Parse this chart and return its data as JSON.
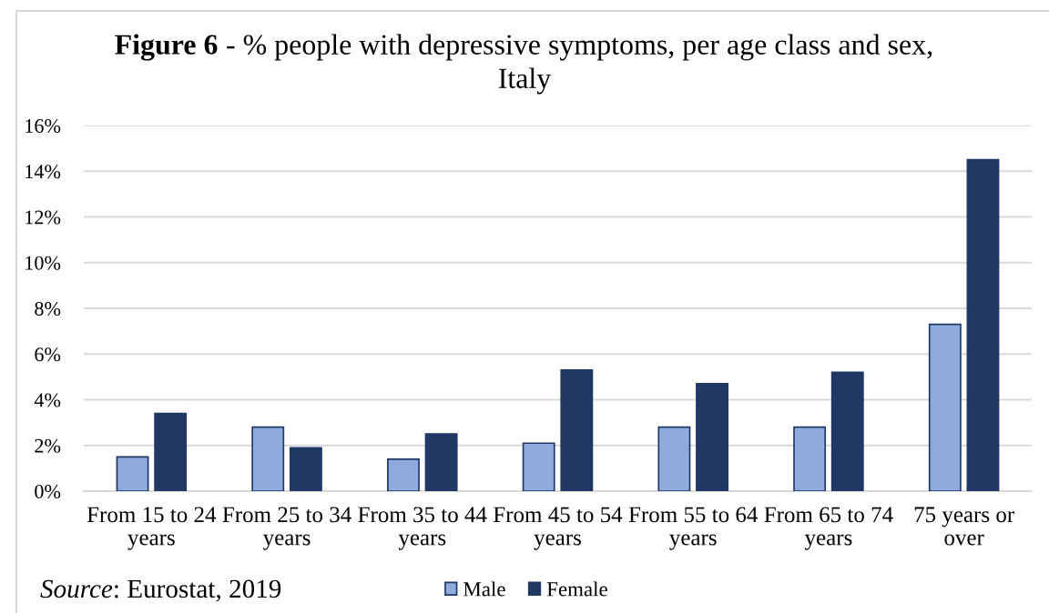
{
  "chart_data": {
    "type": "bar",
    "title": "Figure 6 - % people with depressive symptoms, per age class and sex, Italy",
    "categories": [
      "From 15 to 24 years",
      "From 25 to 34 years",
      "From 35 to 44 years",
      "From 45 to 54 years",
      "From 55 to 64 years",
      "From 65 to 74 years",
      "75 years or over"
    ],
    "series": [
      {
        "name": "Male",
        "color": "#8faadc",
        "values": [
          1.5,
          2.8,
          1.4,
          2.1,
          2.8,
          2.8,
          7.3
        ]
      },
      {
        "name": "Female",
        "color": "#203864",
        "values": [
          3.4,
          1.9,
          2.5,
          5.3,
          4.7,
          5.2,
          14.5
        ]
      }
    ],
    "ylim": [
      0,
      16
    ],
    "yticks": [
      {
        "value": 0,
        "label": "0%"
      },
      {
        "value": 2,
        "label": "2%"
      },
      {
        "value": 4,
        "label": "4%"
      },
      {
        "value": 6,
        "label": "6%"
      },
      {
        "value": 8,
        "label": "8%"
      },
      {
        "value": 10,
        "label": "10%"
      },
      {
        "value": 12,
        "label": "12%"
      },
      {
        "value": 14,
        "label": "14%"
      },
      {
        "value": 16,
        "label": "16%"
      }
    ],
    "grid": "y",
    "legend": "bottom",
    "annotations": [
      "Source: Eurostat, 2019"
    ]
  }
}
